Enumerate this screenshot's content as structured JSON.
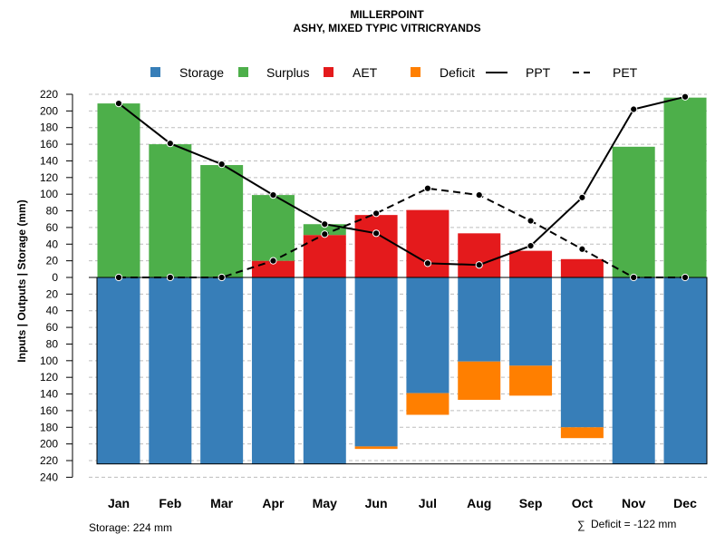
{
  "chart_data": {
    "type": "bar",
    "title": "MILLERPOINT",
    "subtitle": "ASHY, MIXED TYPIC VITRICRYANDS",
    "ylabel": "Inputs | Outputs | Storage    (mm)",
    "ylim": [
      -240,
      220
    ],
    "y_ticks": [
      220,
      200,
      180,
      160,
      140,
      120,
      100,
      80,
      60,
      40,
      20,
      0,
      -20,
      -40,
      -60,
      -80,
      -100,
      -120,
      -140,
      -160,
      -180,
      -200,
      -220,
      -240
    ],
    "y_tick_labels": [
      "220",
      "200",
      "180",
      "160",
      "140",
      "120",
      "100",
      "80",
      "60",
      "40",
      "20",
      "0",
      "20",
      "40",
      "60",
      "80",
      "100",
      "120",
      "140",
      "160",
      "180",
      "200",
      "220",
      "240"
    ],
    "categories": [
      "Jan",
      "Feb",
      "Mar",
      "Apr",
      "May",
      "Jun",
      "Jul",
      "Aug",
      "Sep",
      "Oct",
      "Nov",
      "Dec"
    ],
    "grid": true,
    "legend_position": "top",
    "legend": [
      {
        "name": "Storage",
        "symbol": "square",
        "color": "#377EB8"
      },
      {
        "name": "Surplus",
        "symbol": "square",
        "color": "#4DAF4A"
      },
      {
        "name": "AET",
        "symbol": "square",
        "color": "#E41A1C"
      },
      {
        "name": "Deficit",
        "symbol": "square",
        "color": "#FF7F00"
      },
      {
        "name": "PPT",
        "symbol": "solid-line",
        "color": "#000000"
      },
      {
        "name": "PET",
        "symbol": "dashed-line",
        "color": "#000000"
      }
    ],
    "series": [
      {
        "name": "Storage",
        "color": "#377EB8",
        "values": [
          224,
          224,
          224,
          224,
          224,
          203,
          139,
          101,
          106,
          180,
          224,
          224
        ]
      },
      {
        "name": "Deficit",
        "color": "#FF7F00",
        "values": [
          0,
          0,
          0,
          0,
          0,
          3,
          26,
          46,
          36,
          13,
          0,
          0
        ]
      },
      {
        "name": "AET",
        "color": "#E41A1C",
        "values": [
          0,
          0,
          0,
          20,
          51,
          75,
          81,
          53,
          32,
          22,
          0,
          0
        ]
      },
      {
        "name": "Surplus",
        "color": "#4DAF4A",
        "values": [
          209,
          160,
          135,
          79,
          13,
          0,
          0,
          0,
          0,
          0,
          157,
          216
        ]
      },
      {
        "name": "PPT",
        "color": "#000000",
        "style": "solid",
        "values": [
          209,
          161,
          136,
          99,
          64,
          53,
          17,
          15,
          38,
          96,
          202,
          217
        ]
      },
      {
        "name": "PET",
        "color": "#000000",
        "style": "dashed",
        "values": [
          0,
          0,
          0,
          20,
          52,
          77,
          107,
          99,
          68,
          34,
          0,
          0
        ]
      }
    ],
    "annotations": {
      "storage_note": "Storage: 224 mm",
      "deficit_symbol": "∑",
      "deficit_note": "Deficit = -122 mm"
    }
  }
}
